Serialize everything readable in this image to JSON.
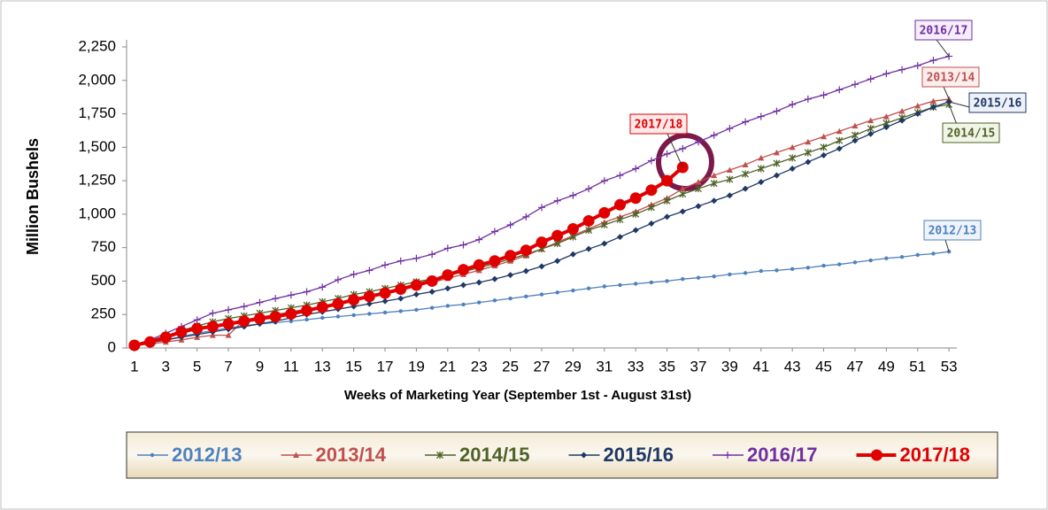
{
  "chart_data": {
    "type": "line",
    "y_label": "Million Bushels",
    "x_label": "Weeks of Marketing Year (September 1st - August 31st)",
    "x": [
      1,
      2,
      3,
      4,
      5,
      6,
      7,
      8,
      9,
      10,
      11,
      12,
      13,
      14,
      15,
      16,
      17,
      18,
      19,
      20,
      21,
      22,
      23,
      24,
      25,
      26,
      27,
      28,
      29,
      30,
      31,
      32,
      33,
      34,
      35,
      36,
      37,
      38,
      39,
      40,
      41,
      42,
      43,
      44,
      45,
      46,
      47,
      48,
      49,
      50,
      51,
      52,
      53
    ],
    "xlim": [
      0.5,
      53.5
    ],
    "xticks": [
      1,
      3,
      5,
      7,
      9,
      11,
      13,
      15,
      17,
      19,
      21,
      23,
      25,
      27,
      29,
      31,
      33,
      35,
      37,
      39,
      41,
      43,
      45,
      47,
      49,
      51,
      53
    ],
    "ylim": [
      0,
      2250
    ],
    "yticks": [
      0,
      250,
      500,
      750,
      {
        "value": 1000,
        "label": "1,000"
      },
      {
        "value": 1250,
        "label": "1,250"
      },
      {
        "value": 1500,
        "label": "1,500"
      },
      {
        "value": 1750,
        "label": "1,750"
      },
      {
        "value": 2000,
        "label": "2,000"
      },
      {
        "value": 2250,
        "label": "2,250"
      }
    ],
    "grid": false,
    "legend": "bottom",
    "series": [
      {
        "name": "2012/13",
        "color": "#4f81bd",
        "marker": "dot",
        "values": [
          20,
          40,
          60,
          85,
          110,
          130,
          150,
          165,
          180,
          190,
          200,
          212,
          225,
          235,
          245,
          255,
          265,
          275,
          285,
          300,
          315,
          325,
          340,
          355,
          370,
          385,
          400,
          415,
          430,
          445,
          460,
          470,
          480,
          490,
          500,
          515,
          525,
          535,
          550,
          560,
          575,
          580,
          590,
          600,
          615,
          625,
          640,
          655,
          670,
          680,
          695,
          705,
          720
        ]
      },
      {
        "name": "2013/14",
        "color": "#c0504d",
        "marker": "triangle",
        "values": [
          20,
          30,
          45,
          60,
          80,
          95,
          95,
          210,
          230,
          250,
          270,
          290,
          310,
          335,
          360,
          385,
          410,
          440,
          465,
          490,
          520,
          550,
          580,
          615,
          650,
          690,
          740,
          790,
          840,
          890,
          940,
          980,
          1020,
          1070,
          1120,
          1190,
          1240,
          1290,
          1330,
          1370,
          1420,
          1460,
          1500,
          1540,
          1580,
          1620,
          1660,
          1700,
          1730,
          1770,
          1810,
          1845,
          1860
        ]
      },
      {
        "name": "2014/15",
        "color": "#4f6228",
        "marker": "star",
        "values": [
          25,
          55,
          90,
          130,
          165,
          195,
          220,
          240,
          260,
          280,
          300,
          320,
          345,
          370,
          400,
          420,
          445,
          470,
          495,
          515,
          540,
          570,
          600,
          630,
          665,
          700,
          740,
          780,
          830,
          880,
          920,
          960,
          1000,
          1050,
          1100,
          1150,
          1190,
          1230,
          1260,
          1300,
          1340,
          1380,
          1420,
          1460,
          1500,
          1550,
          1590,
          1640,
          1680,
          1720,
          1760,
          1800,
          1820
        ]
      },
      {
        "name": "2015/16",
        "color": "#1f3864",
        "marker": "diamond",
        "values": [
          20,
          40,
          60,
          80,
          100,
          120,
          140,
          160,
          180,
          200,
          225,
          250,
          270,
          290,
          310,
          330,
          350,
          370,
          400,
          420,
          445,
          470,
          490,
          515,
          545,
          575,
          610,
          650,
          700,
          740,
          780,
          830,
          880,
          930,
          980,
          1020,
          1060,
          1100,
          1140,
          1190,
          1240,
          1290,
          1340,
          1390,
          1440,
          1490,
          1550,
          1600,
          1650,
          1700,
          1750,
          1800,
          1840
        ]
      },
      {
        "name": "2016/17",
        "color": "#7030a0",
        "marker": "plus",
        "values": [
          25,
          60,
          110,
          160,
          210,
          260,
          285,
          310,
          340,
          370,
          395,
          420,
          455,
          510,
          550,
          580,
          620,
          650,
          670,
          700,
          745,
          770,
          810,
          870,
          920,
          980,
          1050,
          1100,
          1140,
          1190,
          1250,
          1290,
          1340,
          1400,
          1450,
          1490,
          1540,
          1590,
          1640,
          1690,
          1730,
          1770,
          1820,
          1860,
          1890,
          1930,
          1970,
          2010,
          2050,
          2080,
          2110,
          2150,
          2180
        ]
      },
      {
        "name": "2017/18",
        "color": "#e00000",
        "marker": "circle",
        "values": [
          20,
          45,
          80,
          120,
          145,
          160,
          180,
          200,
          220,
          235,
          255,
          280,
          305,
          330,
          360,
          385,
          410,
          440,
          470,
          500,
          545,
          585,
          620,
          650,
          690,
          730,
          790,
          840,
          890,
          950,
          1010,
          1070,
          1120,
          1180,
          1250,
          1350,
          null,
          null,
          null,
          null,
          null,
          null,
          null,
          null,
          null,
          null,
          null,
          null,
          null,
          null,
          null,
          null,
          null
        ]
      }
    ]
  }
}
